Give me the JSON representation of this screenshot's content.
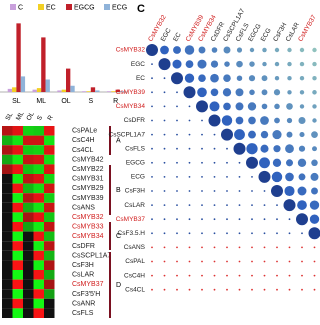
{
  "chart_data": {
    "type": "bar",
    "categories": [
      "SL",
      "ML",
      "OL",
      "S",
      "R"
    ],
    "series": [
      {
        "name": "C",
        "color": "#c9a0dc",
        "values": [
          4,
          3,
          2,
          1,
          1
        ]
      },
      {
        "name": "EC",
        "color": "#f2d024",
        "values": [
          6,
          5,
          3,
          1,
          1
        ]
      },
      {
        "name": "EGCG",
        "color": "#c0202a",
        "values": [
          88,
          70,
          30,
          6,
          3
        ]
      },
      {
        "name": "ECG",
        "color": "#8fb3d9",
        "values": [
          20,
          16,
          8,
          2,
          1
        ]
      }
    ],
    "ylim": [
      0,
      100
    ]
  },
  "heatmap": {
    "columns": [
      "SL",
      "ML",
      "OL",
      "S",
      "R"
    ],
    "rows": [
      "CsPALe",
      "CsC4H",
      "Cs4CL",
      "CsMYB42",
      "CsMYB22",
      "CsMYB31",
      "CsMYB29",
      "CsMYB39",
      "CsANS",
      "CsMYB32",
      "CsMYB33",
      "CsMYB34",
      "CsDFR",
      "CsSCPL1A7",
      "CsF3H",
      "CsLAR",
      "CsMYB37",
      "CsF3'5'H",
      "CsANR",
      "CsFLS"
    ],
    "groups": [
      "A",
      "B",
      "C",
      "D"
    ]
  },
  "correlation": {
    "panel": "C",
    "columns": [
      "CsMYB32",
      "EGC",
      "EC",
      "CsMYB39",
      "CsMYB34",
      "CsDFR",
      "CsSCPL1A7",
      "CsFLS",
      "EGCG",
      "ECG",
      "CsF3H",
      "CsLAR",
      "CsMYB37"
    ],
    "rows": [
      "CsMYB32",
      "EGC",
      "EC",
      "CsMYB39",
      "CsMYB34",
      "CsDFR",
      "CsSCPL1A7",
      "CsFLS",
      "EGCG",
      "ECG",
      "CsF3H",
      "CsLAR",
      "CsMYB37",
      "CsF3.5.H",
      "CsANS",
      "CsPAL",
      "CsC4H",
      "Cs4CL"
    ]
  }
}
